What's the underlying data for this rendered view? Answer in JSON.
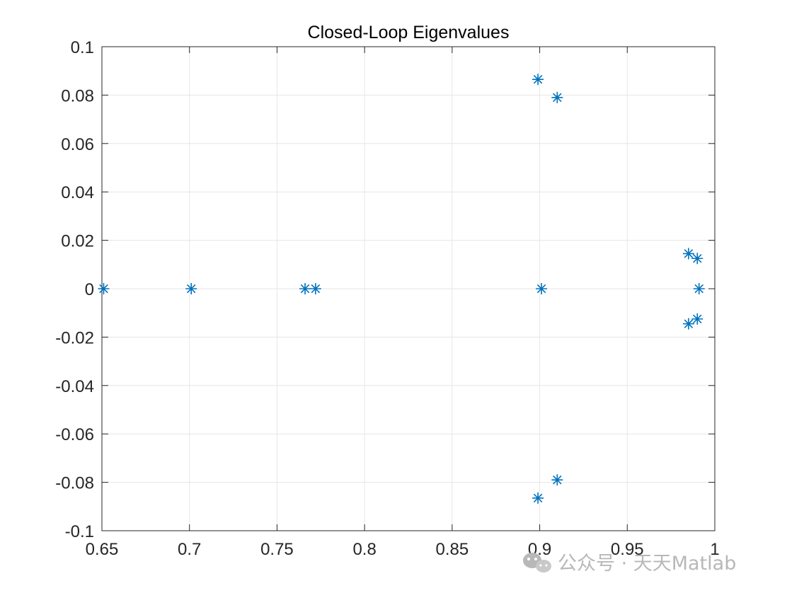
{
  "chart_data": {
    "type": "scatter",
    "title": "Closed-Loop Eigenvalues",
    "xlabel": "",
    "ylabel": "",
    "xlim": [
      0.65,
      1
    ],
    "ylim": [
      -0.1,
      0.1
    ],
    "grid": true,
    "marker": "asterisk",
    "color": "#0072BD",
    "x_ticks": [
      0.65,
      0.7,
      0.75,
      0.8,
      0.85,
      0.9,
      0.95,
      1
    ],
    "x_tick_labels": [
      "0.65",
      "0.7",
      "0.75",
      "0.8",
      "0.85",
      "0.9",
      "0.95",
      "1"
    ],
    "y_ticks": [
      -0.1,
      -0.08,
      -0.06,
      -0.04,
      -0.02,
      0,
      0.02,
      0.04,
      0.06,
      0.08,
      0.1
    ],
    "y_tick_labels": [
      "-0.1",
      "-0.08",
      "-0.06",
      "-0.04",
      "-0.02",
      "0",
      "0.02",
      "0.04",
      "0.06",
      "0.08",
      "0.1"
    ],
    "points": [
      {
        "x": 0.651,
        "y": 0
      },
      {
        "x": 0.701,
        "y": 0
      },
      {
        "x": 0.766,
        "y": 0
      },
      {
        "x": 0.772,
        "y": 0
      },
      {
        "x": 0.899,
        "y": 0.0865
      },
      {
        "x": 0.91,
        "y": 0.079
      },
      {
        "x": 0.899,
        "y": -0.0865
      },
      {
        "x": 0.91,
        "y": -0.079
      },
      {
        "x": 0.901,
        "y": 0
      },
      {
        "x": 0.985,
        "y": 0.0145
      },
      {
        "x": 0.99,
        "y": 0.0125
      },
      {
        "x": 0.991,
        "y": 0
      },
      {
        "x": 0.985,
        "y": -0.0145
      },
      {
        "x": 0.99,
        "y": -0.0125
      }
    ]
  },
  "watermark": {
    "text": "公众号 · 天天Matlab",
    "icon": "wechat-icon"
  }
}
